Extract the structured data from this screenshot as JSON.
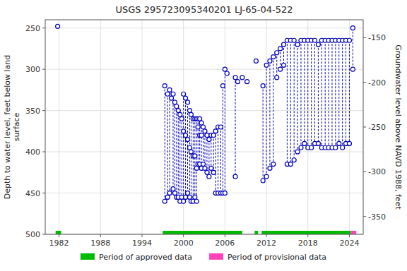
{
  "chart_data": {
    "type": "scatter",
    "title": "USGS 295723095340201 LJ-65-04-522",
    "ylabel": "Depth to water level, feet below land\nsurface",
    "y2label": "Groundwater level above NAVD 1988, feet",
    "x": [
      1981.8,
      1997.3,
      1997.7,
      1998.0,
      1998.25,
      1998.5,
      1998.75,
      1999.0,
      1999.25,
      1999.5,
      1999.75,
      2000.0,
      2000.3,
      2000.6,
      2000.9,
      2001.1,
      2001.4,
      2001.65,
      2001.9,
      2002.1,
      2002.35,
      2002.6,
      2002.85,
      2003.1,
      2003.4,
      2003.7,
      2004.0,
      2004.35,
      2004.65,
      2005.0,
      2005.4,
      2005.7,
      2006.0,
      2006.3,
      2007.5,
      2007.85,
      2008.5,
      2009.2,
      2010.5,
      2011.5,
      2012.0,
      2012.5,
      2013.0,
      2013.5,
      2014.0,
      2014.5,
      2015.0,
      2015.5,
      2016.0,
      2016.5,
      2017.0,
      2017.5,
      2018.0,
      2018.5,
      2019.0,
      2019.5,
      2020.0,
      2020.5,
      2021.0,
      2021.5,
      2022.0,
      2022.5,
      2023.0,
      2023.5,
      2024.0,
      2024.5
    ],
    "values": [
      [
        248
      ],
      [
        320,
        460
      ],
      [
        330,
        455
      ],
      [
        325,
        450
      ],
      [
        335
      ],
      [
        330,
        445
      ],
      [
        340,
        450
      ],
      [
        345,
        455
      ],
      [
        350,
        455
      ],
      [
        355,
        460
      ],
      [
        360,
        455
      ],
      [
        330,
        375,
        460
      ],
      [
        335,
        380,
        455
      ],
      [
        340,
        385,
        450
      ],
      [
        350,
        395,
        455
      ],
      [
        355,
        400,
        460
      ],
      [
        360,
        405,
        460
      ],
      [
        360,
        405,
        455
      ],
      [
        360,
        420,
        460
      ],
      [
        360,
        370,
        415
      ],
      [
        360,
        380,
        415
      ],
      [
        365,
        380,
        420
      ],
      [
        370,
        415
      ],
      [
        375,
        420
      ],
      [
        380,
        425
      ],
      [
        385,
        430
      ],
      [
        380,
        420
      ],
      [
        380,
        425
      ],
      [
        375,
        450
      ],
      [
        370,
        450
      ],
      [
        370,
        450
      ],
      [
        320,
        450
      ],
      [
        300,
        450
      ],
      [
        305
      ],
      [
        310,
        430
      ],
      [
        315
      ],
      [
        310
      ],
      [
        315
      ],
      [
        290
      ],
      [
        320,
        435
      ],
      [
        295,
        430
      ],
      [
        290,
        420
      ],
      [
        285,
        415
      ],
      [
        280,
        310
      ],
      [
        275,
        300
      ],
      [
        270,
        295
      ],
      [
        265,
        415
      ],
      [
        265,
        415
      ],
      [
        265,
        410
      ],
      [
        270,
        400
      ],
      [
        265,
        395
      ],
      [
        265,
        390
      ],
      [
        265,
        395
      ],
      [
        265,
        395
      ],
      [
        265,
        390
      ],
      [
        270,
        390
      ],
      [
        265,
        395
      ],
      [
        265,
        395
      ],
      [
        265,
        395
      ],
      [
        265,
        395
      ],
      [
        265,
        395
      ],
      [
        265,
        390
      ],
      [
        265,
        395
      ],
      [
        265,
        390
      ],
      [
        265,
        390
      ],
      [
        300,
        250
      ]
    ],
    "color": "#0000bb",
    "marker": "circle",
    "line_style": "dashed",
    "xlim": [
      1980,
      2026
    ],
    "xticks": [
      1982,
      1988,
      1994,
      2000,
      2006,
      2012,
      2018,
      2024
    ],
    "ylim": [
      500,
      240
    ],
    "yticks": [
      250,
      300,
      350,
      400,
      450,
      500
    ],
    "y2lim": [
      -370,
      -130
    ],
    "y2ticks": [
      -150,
      -200,
      -250,
      -300,
      -350
    ],
    "grid": true,
    "legend": "bottom",
    "periods": [
      {
        "name": "Period of approved data",
        "color": "#00bb00",
        "ranges": [
          [
            1981.5,
            1982.3
          ],
          [
            1997.0,
            2008.5
          ],
          [
            2010.3,
            2010.8
          ],
          [
            2011.3,
            2024.2
          ]
        ]
      },
      {
        "name": "Period of provisional data",
        "color": "#ff44bb",
        "ranges": [
          [
            2024.2,
            2025.0
          ]
        ]
      }
    ]
  }
}
